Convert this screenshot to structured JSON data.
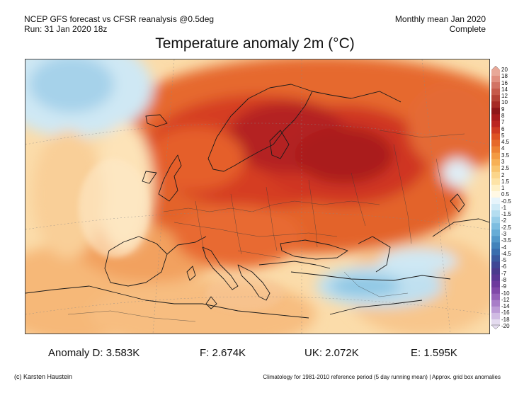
{
  "header": {
    "left_line1": "NCEP GFS forecast vs CFSR reanalysis @0.5deg",
    "left_line2": "Run: 31 Jan 2020 18z",
    "right_line1": "Monthly mean Jan 2020",
    "right_line2": "Complete"
  },
  "title": "Temperature anomaly 2m (°C)",
  "colorbar": {
    "labels": [
      "20",
      "18",
      "16",
      "14",
      "12",
      "10",
      "9",
      "8",
      "7",
      "6",
      "5",
      "4.5",
      "4",
      "3.5",
      "3",
      "2.5",
      "2",
      "1.5",
      "1",
      "0.5",
      "-0.5",
      "-1",
      "-1.5",
      "-2",
      "-2.5",
      "-3",
      "-3.5",
      "-4",
      "-4.5",
      "-5",
      "-6",
      "-7",
      "-8",
      "-9",
      "-10",
      "-12",
      "-14",
      "-16",
      "-18",
      "-20"
    ],
    "colors": [
      "#e8a898",
      "#e08f7f",
      "#d27364",
      "#c65a4b",
      "#b54337",
      "#a62a25",
      "#8e1518",
      "#a71a1c",
      "#bb2520",
      "#cf3a22",
      "#de5224",
      "#e66a2a",
      "#ed8233",
      "#f39a42",
      "#f7b055",
      "#f9c46e",
      "#fbd58a",
      "#fde3a6",
      "#fef0c6",
      "#fff8e4",
      "#e6f4fb",
      "#cfeaf6",
      "#b4ddf0",
      "#97cde8",
      "#7dbde0",
      "#66acd6",
      "#5298c9",
      "#4283bb",
      "#3a6eae",
      "#3a5a9f",
      "#3f4795",
      "#4a3a8d",
      "#5a3794",
      "#6d3a9d",
      "#8048a8",
      "#9460b8",
      "#a87dc8",
      "#bc9bd6",
      "#d0bbe3",
      "#e4dbef"
    ]
  },
  "stats": {
    "anomaly_d": "Anomaly D: 3.583K",
    "f": "F: 2.674K",
    "uk": "UK: 2.072K",
    "e": "E: 1.595K"
  },
  "footer": {
    "credit": "(c) Karsten Haustein",
    "note": "Climatology for 1981-2010 reference period (5 day running mean) | Approx. grid box anomalies"
  },
  "palette": {
    "deep_red": "#a3191b",
    "red": "#cf3a22",
    "orange_red": "#e6682c",
    "orange": "#f29a4a",
    "light_orange": "#f9c27a",
    "pale": "#fde3b8",
    "pale_blue": "#cfe8f4",
    "light_blue": "#a6d2ea",
    "blue": "#6aaed6"
  }
}
